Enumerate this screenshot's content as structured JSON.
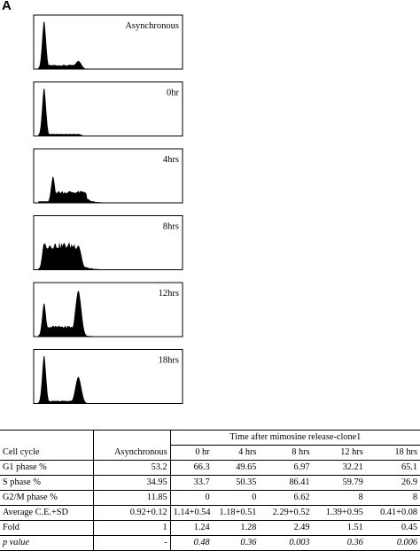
{
  "figure": {
    "panel_label": "A"
  },
  "chart_data": {
    "type": "histogram",
    "panels": [
      {
        "label": "Asynchronous",
        "g1_peak": 1.0,
        "s_level": 0.08,
        "g2_peak": 0.17,
        "g2m_peak_fraction": 0.17
      },
      {
        "label": "0hr",
        "g1_peak": 1.0,
        "s_level": 0.04,
        "g2_peak": 0.04
      },
      {
        "label": "4hrs",
        "g1_peak": 0.55,
        "s_level": 0.22,
        "g2_peak": 0.08,
        "shift": 0.06
      },
      {
        "label": "8hrs",
        "g1_peak": 0.55,
        "s_level": 0.5,
        "g2_peak": 0.5,
        "shift": 0.0
      },
      {
        "label": "12hrs",
        "g1_peak": 0.7,
        "s_level": 0.2,
        "g2_peak": 0.95
      },
      {
        "label": "18hrs",
        "g1_peak": 1.0,
        "s_level": 0.05,
        "g2_peak": 0.55
      }
    ]
  },
  "table": {
    "group_header": "Time after mimosine release-clone1",
    "columns": [
      "Cell cycle",
      "Asynchronous",
      "0 hr",
      "4 hrs",
      "8 hrs",
      "12 hrs",
      "18 hrs"
    ],
    "rows": [
      [
        "G1 phase %",
        "53.2",
        "66.3",
        "49.65",
        "6.97",
        "32.21",
        "65.1"
      ],
      [
        "S phase %",
        "34.95",
        "33.7",
        "50.35",
        "86.41",
        "59.79",
        "26.9"
      ],
      [
        "G2/M phase %",
        "11.85",
        "0",
        "0",
        "6.62",
        "8",
        "8"
      ],
      [
        "Average C.E.+SD",
        "0.92+0.12",
        "1.14+0.54",
        "1.18+0.51",
        "2.29+0.52",
        "1.39+0.95",
        "0.41+0.08"
      ],
      [
        "Fold",
        "1",
        "1.24",
        "1.28",
        "2.49",
        "1.51",
        "0.45"
      ],
      [
        "p value",
        "-",
        "0.48",
        "0.36",
        "0.003",
        "0.36",
        "0.006"
      ]
    ]
  }
}
